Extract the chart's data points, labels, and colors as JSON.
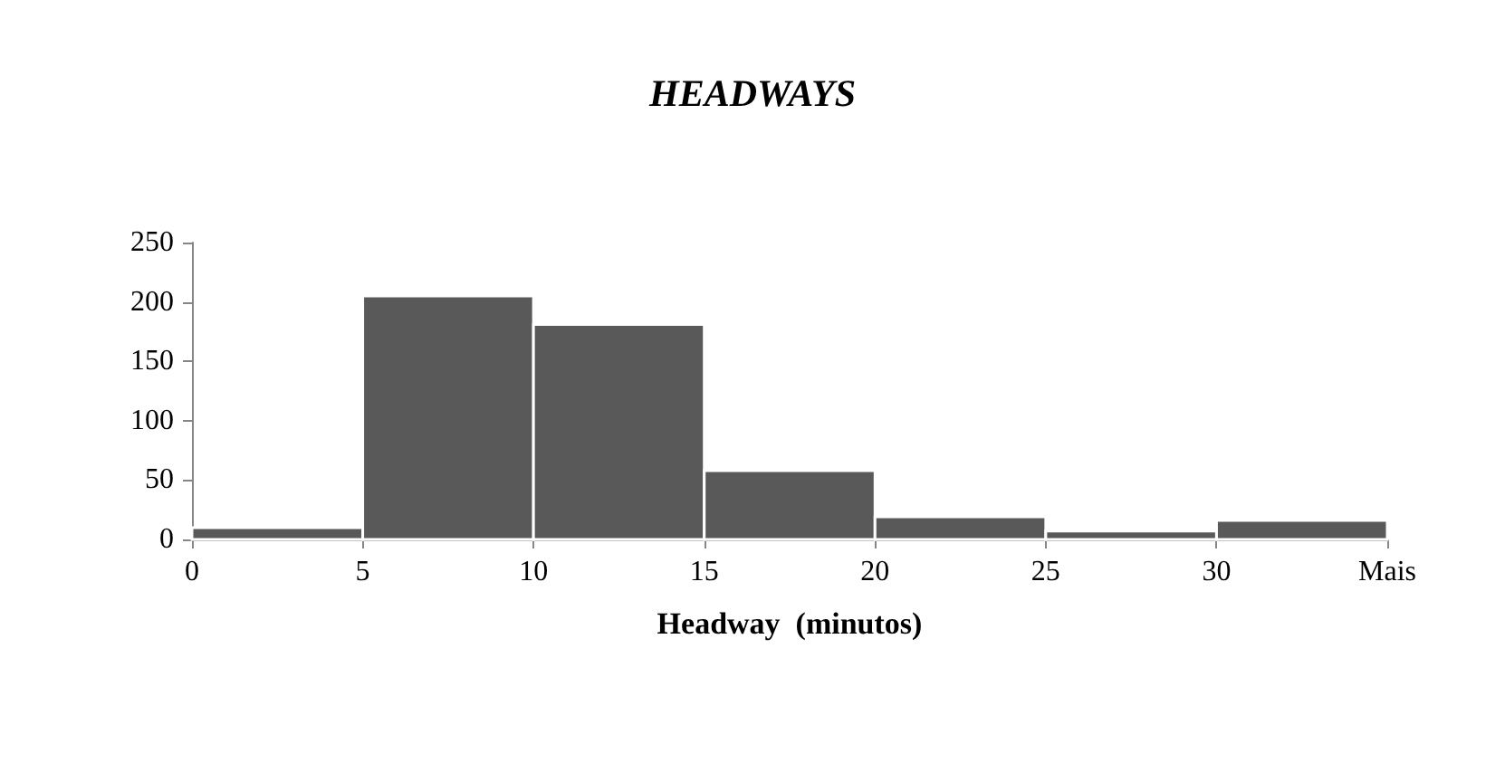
{
  "chart_data": {
    "type": "histogram",
    "title": "HEADWAYS",
    "xlabel": "Headway  (minutos)",
    "bins": [
      0,
      5,
      10,
      15,
      20,
      25,
      30,
      35
    ],
    "values": [
      10,
      205,
      181,
      58,
      19,
      7,
      16
    ],
    "color": "#595959",
    "xlim": [
      0,
      35
    ],
    "xticks": [
      0,
      5,
      10,
      15,
      20,
      25,
      30,
      {
        "value": 35,
        "label": "Mais"
      }
    ],
    "ylim": [
      0,
      250
    ],
    "yticks": [
      0,
      50,
      100,
      150,
      200,
      250
    ],
    "grid": false
  }
}
